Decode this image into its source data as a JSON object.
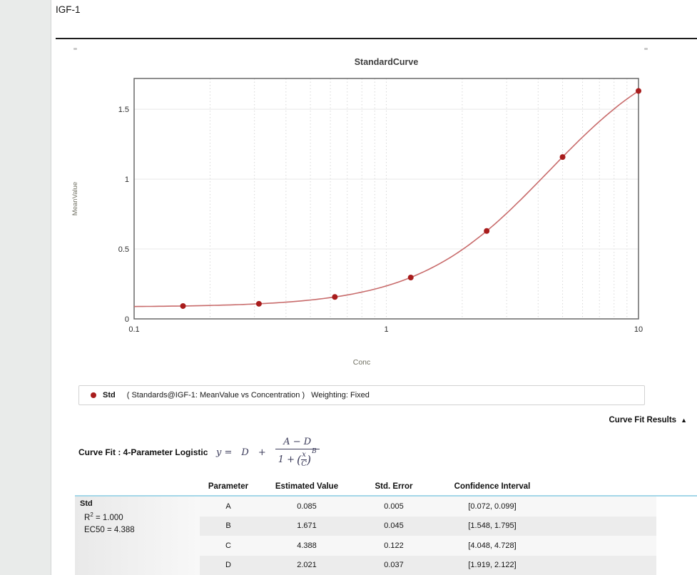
{
  "page": {
    "section_title": "IGF-1"
  },
  "chart_data": {
    "type": "scatter",
    "title": "StandardCurve",
    "xlabel": "Conc",
    "ylabel": "MeanValue",
    "x_scale": "log",
    "xlim": [
      0.1,
      10
    ],
    "ylim": [
      0,
      1.72
    ],
    "x_ticks": [
      0.1,
      1,
      10
    ],
    "x_tick_labels": [
      "0.1",
      "1",
      "10"
    ],
    "y_ticks": [
      0,
      0.5,
      1,
      1.5
    ],
    "y_tick_labels": [
      "0",
      "0.5",
      "1",
      "1.5"
    ],
    "grid": {
      "horizontal": "solid",
      "vertical_minor": "dotted"
    },
    "series": [
      {
        "name": "Std",
        "points": [
          {
            "x": 0.15625,
            "y": 0.092
          },
          {
            "x": 0.3125,
            "y": 0.108
          },
          {
            "x": 0.625,
            "y": 0.157
          },
          {
            "x": 1.25,
            "y": 0.296
          },
          {
            "x": 2.5,
            "y": 0.629
          },
          {
            "x": 5,
            "y": 1.158
          },
          {
            "x": 10,
            "y": 1.631
          }
        ],
        "point_color": "#a81c1c",
        "line_color": "#c86b6b"
      }
    ],
    "fit": {
      "model": "4-Parameter Logistic",
      "A": 0.085,
      "B": 1.671,
      "C": 4.388,
      "D": 2.021
    }
  },
  "legend": {
    "series_label": "Std",
    "source_text": "( Standards@IGF-1: MeanValue vs Concentration )",
    "weighting_text": "Weighting: Fixed",
    "marker_color": "#a81c1c"
  },
  "results": {
    "toggle_label": "Curve Fit Results",
    "toggle_arrow": "▲",
    "fit_title": "Curve Fit : 4-Parameter Logistic",
    "formula": {
      "lhs": "y =",
      "term_d": "D",
      "plus": "+",
      "numerator": "A − D",
      "den_prefix": "1 +",
      "lparen": "(",
      "inner_num": "x",
      "inner_den": "C",
      "rparen": ")",
      "exponent": "B"
    },
    "table": {
      "headers": [
        "Parameter",
        "Estimated Value",
        "Std. Error",
        "Confidence Interval"
      ],
      "group": {
        "name": "Std",
        "r2_base": "R",
        "r2_sup": "2",
        "r2_eq": " = 1.000",
        "ec50": "EC50 = 4.388"
      },
      "rows": [
        {
          "parameter": "A",
          "estimated_value": "0.085",
          "std_error": "0.005",
          "confidence_interval": "[0.072, 0.099]"
        },
        {
          "parameter": "B",
          "estimated_value": "1.671",
          "std_error": "0.045",
          "confidence_interval": "[1.548, 1.795]"
        },
        {
          "parameter": "C",
          "estimated_value": "4.388",
          "std_error": "0.122",
          "confidence_interval": "[4.048, 4.728]"
        },
        {
          "parameter": "D",
          "estimated_value": "2.021",
          "std_error": "0.037",
          "confidence_interval": "[1.919, 2.122]"
        }
      ]
    }
  },
  "colors": {
    "accent_rule": "#a3d7e8",
    "divider": "#1d1d1d",
    "sidebar_bg": "#e9ebea"
  }
}
